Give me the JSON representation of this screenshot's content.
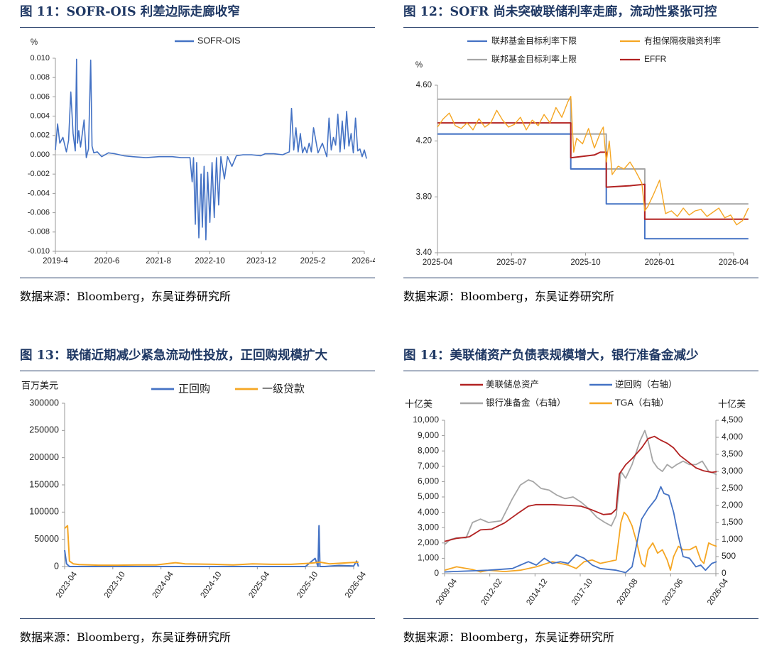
{
  "colors": {
    "title": "#1f3864",
    "blue": "#4472c4",
    "orange": "#f5a623",
    "red": "#b22222",
    "gray": "#a6a6a6"
  },
  "panels": [
    {
      "title": "图 11：SOFR-OIS 利差边际走廊收窄",
      "source": "数据来源：Bloomberg，东吴证券研究所"
    },
    {
      "title": "图 12：SOFR 尚未突破联储利率走廊，流动性紧张可控",
      "source": "数据来源：Bloomberg，东吴证券研究所"
    },
    {
      "title": "图 13：联储近期减少紧急流动性投放，正回购规模扩大",
      "source": "数据来源：Bloomberg，东吴证券研究所"
    },
    {
      "title": "图 14：美联储资产负债表规模增大，银行准备金减少",
      "source": "数据来源：Bloomberg，东吴证券研究所"
    }
  ],
  "chart_data": [
    {
      "type": "line",
      "unit": "%",
      "ylim": [
        -0.01,
        0.01
      ],
      "yticks": [
        "0.010",
        "0.008",
        "0.006",
        "0.004",
        "0.002",
        "0.000",
        "-0.002",
        "-0.004",
        "-0.006",
        "-0.008",
        "-0.010"
      ],
      "xticks": [
        "2019-4",
        "2020-6",
        "2021-8",
        "2022-10",
        "2023-12",
        "2025-2",
        "2026-4"
      ],
      "legend": [
        "SOFR-OIS"
      ],
      "series": [
        {
          "name": "SOFR-OIS",
          "color": "#4472c4",
          "x": [
            2019.25,
            2019.3,
            2019.35,
            2019.42,
            2019.5,
            2019.55,
            2019.6,
            2019.65,
            2019.7,
            2019.73,
            2019.75,
            2019.78,
            2019.82,
            2019.9,
            2019.95,
            2020.0,
            2020.05,
            2020.08,
            2020.12,
            2020.2,
            2020.3,
            2020.45,
            2020.6,
            2020.8,
            2021.0,
            2021.3,
            2021.6,
            2021.9,
            2022.1,
            2022.3,
            2022.35,
            2022.38,
            2022.42,
            2022.45,
            2022.5,
            2022.55,
            2022.58,
            2022.62,
            2022.66,
            2022.7,
            2022.75,
            2022.8,
            2022.85,
            2022.9,
            2022.95,
            2023.0,
            2023.08,
            2023.15,
            2023.25,
            2023.35,
            2023.5,
            2023.7,
            2023.9,
            2024.0,
            2024.2,
            2024.4,
            2024.55,
            2024.6,
            2024.65,
            2024.7,
            2024.75,
            2024.8,
            2024.85,
            2024.9,
            2024.95,
            2025.0,
            2025.05,
            2025.1,
            2025.2,
            2025.3,
            2025.4,
            2025.45,
            2025.5,
            2025.55,
            2025.6,
            2025.65,
            2025.7,
            2025.75,
            2025.8,
            2025.85,
            2025.9,
            2025.95,
            2026.0,
            2026.05,
            2026.1,
            2026.15,
            2026.2,
            2026.25,
            2026.3
          ],
          "y": [
            0.0005,
            0.0032,
            0.0012,
            0.0018,
            0.0003,
            0.0015,
            0.0065,
            0.0022,
            0.0004,
            0.0099,
            0.0012,
            0.0025,
            0.0008,
            0.0036,
            -0.0003,
            0.0006,
            0.0098,
            0.0009,
            0.0002,
            0.0003,
            -0.0002,
            0.0002,
            0.0001,
            -0.0001,
            -0.0002,
            -0.0003,
            -0.0002,
            -0.0002,
            -0.0003,
            -0.0003,
            -0.0028,
            -0.0003,
            -0.0072,
            -0.0008,
            -0.0086,
            -0.002,
            -0.0075,
            -0.0012,
            -0.0088,
            -0.0018,
            -0.007,
            -0.0008,
            -0.0065,
            -0.0003,
            -0.0052,
            -0.0002,
            -0.0025,
            -0.0002,
            -0.0012,
            -0.0001,
            0.0,
            0.0,
            -0.0001,
            0.0001,
            0.0001,
            0.0,
            0.0003,
            0.0048,
            0.0005,
            0.0028,
            0.0003,
            0.0022,
            0.0002,
            0.0008,
            0.0002,
            0.0012,
            0.0003,
            0.0028,
            0.0002,
            0.0012,
            -0.0002,
            0.0038,
            0.0005,
            0.0018,
            0.001,
            0.0042,
            0.0003,
            0.0035,
            0.0006,
            0.0045,
            0.0009,
            0.0022,
            0.0002,
            0.0038,
            0.0004,
            0.0006,
            -0.0002,
            0.0005,
            -0.0004
          ]
        }
      ]
    },
    {
      "type": "line",
      "unit": "%",
      "ylim": [
        3.4,
        4.6
      ],
      "yticks": [
        "4.60",
        "4.20",
        "3.80",
        "3.40"
      ],
      "xticks": [
        "2025-04",
        "2025-07",
        "2025-10",
        "2026-01",
        "2026-04"
      ],
      "legend": [
        "联邦基金目标利率下限",
        "有担保隔夜融资利率",
        "联邦基金目标利率上限",
        "EFFR"
      ],
      "series": [
        {
          "name": "联邦基金目标利率下限",
          "color": "#4472c4",
          "x": [
            2025.25,
            2025.7,
            2025.7,
            2025.82,
            2025.82,
            2025.95,
            2025.95,
            2026.3
          ],
          "y": [
            4.25,
            4.25,
            4.0,
            4.0,
            3.75,
            3.75,
            3.5,
            3.5
          ]
        },
        {
          "name": "联邦基金目标利率上限",
          "color": "#a6a6a6",
          "x": [
            2025.25,
            2025.7,
            2025.7,
            2025.82,
            2025.82,
            2025.95,
            2025.95,
            2026.3
          ],
          "y": [
            4.5,
            4.5,
            4.25,
            4.25,
            4.0,
            4.0,
            3.75,
            3.75
          ]
        },
        {
          "name": "EFFR",
          "color": "#b22222",
          "x": [
            2025.25,
            2025.7,
            2025.7,
            2025.78,
            2025.8,
            2025.82,
            2025.82,
            2025.9,
            2025.95,
            2025.95,
            2026.3
          ],
          "y": [
            4.33,
            4.33,
            4.08,
            4.1,
            4.12,
            4.12,
            3.87,
            3.88,
            3.89,
            3.64,
            3.64
          ]
        },
        {
          "name": "有担保隔夜融资利率",
          "color": "#f5a623",
          "x": [
            2025.25,
            2025.27,
            2025.29,
            2025.31,
            2025.33,
            2025.35,
            2025.37,
            2025.39,
            2025.41,
            2025.43,
            2025.45,
            2025.47,
            2025.49,
            2025.51,
            2025.53,
            2025.55,
            2025.57,
            2025.59,
            2025.61,
            2025.63,
            2025.65,
            2025.67,
            2025.69,
            2025.7,
            2025.71,
            2025.72,
            2025.74,
            2025.76,
            2025.78,
            2025.8,
            2025.81,
            2025.82,
            2025.83,
            2025.84,
            2025.86,
            2025.88,
            2025.9,
            2025.92,
            2025.94,
            2025.95,
            2025.96,
            2025.98,
            2026.0,
            2026.02,
            2026.04,
            2026.06,
            2026.08,
            2026.1,
            2026.12,
            2026.14,
            2026.16,
            2026.18,
            2026.2,
            2026.22,
            2026.24,
            2026.26,
            2026.28,
            2026.3
          ],
          "y": [
            4.3,
            4.36,
            4.4,
            4.31,
            4.29,
            4.33,
            4.28,
            4.36,
            4.3,
            4.33,
            4.42,
            4.35,
            4.3,
            4.32,
            4.37,
            4.28,
            4.35,
            4.31,
            4.39,
            4.33,
            4.44,
            4.37,
            4.48,
            4.52,
            4.12,
            4.22,
            4.18,
            4.29,
            4.15,
            4.26,
            4.3,
            4.05,
            4.2,
            3.96,
            4.02,
            4.0,
            4.05,
            3.98,
            3.9,
            3.7,
            3.73,
            3.82,
            3.92,
            3.68,
            3.7,
            3.66,
            3.72,
            3.67,
            3.7,
            3.71,
            3.66,
            3.69,
            3.72,
            3.65,
            3.67,
            3.6,
            3.63,
            3.72
          ]
        }
      ]
    },
    {
      "type": "line",
      "unit": "百万美元",
      "ylim": [
        0,
        300000
      ],
      "yticks": [
        "300000",
        "250000",
        "200000",
        "150000",
        "100000",
        "50000",
        "0"
      ],
      "xticks": [
        "2023-04",
        "2023-10",
        "2024-04",
        "2024-10",
        "2025-04",
        "2025-10",
        "2026-04"
      ],
      "legend": [
        "正回购",
        "一级贷款"
      ],
      "series": [
        {
          "name": "正回购",
          "color": "#4472c4",
          "x": [
            2023.25,
            2023.27,
            2023.3,
            2024.0,
            2025.0,
            2025.75,
            2025.85,
            2025.88,
            2025.89,
            2025.9,
            2025.95,
            2026.1,
            2026.25,
            2026.28,
            2026.3
          ],
          "y": [
            30000,
            5000,
            0,
            0,
            0,
            0,
            15000,
            0,
            75000,
            0,
            0,
            2000,
            1000,
            10000,
            0
          ]
        },
        {
          "name": "一级贷款",
          "color": "#f5a623",
          "x": [
            2023.25,
            2023.28,
            2023.3,
            2023.34,
            2023.4,
            2023.6,
            2023.8,
            2024.0,
            2024.2,
            2024.4,
            2024.5,
            2024.8,
            2025.0,
            2025.2,
            2025.4,
            2025.6,
            2025.8,
            2025.9,
            2026.0,
            2026.2,
            2026.3
          ],
          "y": [
            70000,
            75000,
            10000,
            5000,
            3500,
            2500,
            2500,
            3000,
            3000,
            7000,
            5000,
            4000,
            3000,
            5000,
            4000,
            4000,
            6000,
            8000,
            5000,
            7000,
            8000
          ]
        }
      ]
    },
    {
      "type": "line",
      "unit_left": "十亿美",
      "unit_right": "十亿美",
      "ylim": [
        0,
        10000
      ],
      "y2lim": [
        0,
        4500
      ],
      "yticks": [
        "10,000",
        "9,000",
        "8,000",
        "7,000",
        "6,000",
        "5,000",
        "4,000",
        "3,000",
        "2,000",
        "1,000",
        "0"
      ],
      "y2ticks": [
        "4,500",
        "4,000",
        "3,500",
        "3,000",
        "2,500",
        "2,000",
        "1,500",
        "1,000",
        "500",
        "0"
      ],
      "xticks": [
        "2009-04",
        "2012-02",
        "2014-12",
        "2017-10",
        "2020-08",
        "2023-06",
        "2026-04"
      ],
      "legend": [
        "美联储总资产",
        "逆回购（右轴）",
        "银行准备金（右轴）",
        "TGA（右轴）"
      ],
      "series": [
        {
          "name": "美联储总资产",
          "axis": "left",
          "color": "#b22222",
          "x": [
            2009.25,
            2010.0,
            2010.8,
            2011.5,
            2012.2,
            2013.0,
            2013.8,
            2014.5,
            2015.0,
            2016.0,
            2017.0,
            2017.8,
            2018.5,
            2019.2,
            2019.7,
            2020.0,
            2020.2,
            2020.6,
            2021.0,
            2021.6,
            2022.0,
            2022.4,
            2022.8,
            2023.2,
            2023.6,
            2024.0,
            2024.5,
            2025.0,
            2025.5,
            2026.0,
            2026.3
          ],
          "y": [
            2100,
            2300,
            2400,
            2850,
            2900,
            3300,
            3900,
            4400,
            4500,
            4500,
            4450,
            4400,
            4150,
            3850,
            3900,
            4200,
            6500,
            7100,
            7500,
            8200,
            8800,
            8950,
            8700,
            8500,
            8200,
            7700,
            7300,
            6900,
            6700,
            6600,
            6650
          ]
        },
        {
          "name": "逆回购（右轴）",
          "axis": "right",
          "color": "#4472c4",
          "x": [
            2009.25,
            2012.0,
            2013.5,
            2014.0,
            2014.5,
            2015.0,
            2015.5,
            2016.0,
            2016.5,
            2017.0,
            2017.5,
            2018.0,
            2018.5,
            2019.0,
            2020.0,
            2020.6,
            2021.0,
            2021.3,
            2021.6,
            2022.0,
            2022.5,
            2022.8,
            2023.0,
            2023.3,
            2023.6,
            2023.9,
            2024.2,
            2024.6,
            2025.0,
            2025.3,
            2025.6,
            2026.0,
            2026.3
          ],
          "y": [
            50,
            100,
            150,
            250,
            350,
            250,
            450,
            300,
            350,
            300,
            550,
            450,
            250,
            150,
            100,
            30,
            200,
            900,
            1600,
            1900,
            2200,
            2550,
            2350,
            2300,
            1800,
            1100,
            500,
            450,
            200,
            250,
            100,
            300,
            350
          ]
        },
        {
          "name": "银行准备金（右轴）",
          "axis": "right",
          "color": "#a6a6a6",
          "x": [
            2009.25,
            2009.6,
            2010.0,
            2010.6,
            2011.0,
            2011.5,
            2012.0,
            2012.8,
            2013.5,
            2014.0,
            2014.5,
            2014.8,
            2015.3,
            2015.8,
            2016.3,
            2016.8,
            2017.3,
            2017.8,
            2018.3,
            2018.8,
            2019.3,
            2019.7,
            2020.0,
            2020.3,
            2020.6,
            2021.0,
            2021.5,
            2021.8,
            2022.0,
            2022.3,
            2022.6,
            2022.9,
            2023.2,
            2023.5,
            2023.8,
            2024.2,
            2024.6,
            2025.0,
            2025.4,
            2025.8,
            2026.1,
            2026.3
          ],
          "y": [
            850,
            1000,
            1050,
            1050,
            1500,
            1600,
            1500,
            1550,
            2200,
            2600,
            2750,
            2700,
            2500,
            2450,
            2300,
            2200,
            2250,
            2100,
            1900,
            1650,
            1500,
            1400,
            1700,
            3000,
            2800,
            3200,
            3900,
            4200,
            3900,
            3300,
            3100,
            3000,
            3200,
            3100,
            3200,
            3300,
            3200,
            3200,
            3300,
            3000,
            2950,
            2900
          ]
        },
        {
          "name": "TGA（右轴）",
          "axis": "right",
          "color": "#f5a623",
          "x": [
            2009.25,
            2010.0,
            2011.0,
            2011.5,
            2012.0,
            2013.0,
            2014.0,
            2015.0,
            2016.0,
            2016.5,
            2017.0,
            2017.5,
            2018.0,
            2018.5,
            2019.0,
            2019.5,
            2020.0,
            2020.3,
            2020.5,
            2020.7,
            2021.0,
            2021.3,
            2021.6,
            2021.8,
            2022.0,
            2022.3,
            2022.6,
            2022.9,
            2023.2,
            2023.4,
            2023.6,
            2023.9,
            2024.2,
            2024.6,
            2025.0,
            2025.3,
            2025.5,
            2025.8,
            2026.0,
            2026.3
          ],
          "y": [
            100,
            200,
            120,
            50,
            100,
            60,
            100,
            200,
            350,
            300,
            250,
            150,
            350,
            400,
            300,
            350,
            400,
            1500,
            1800,
            1700,
            1400,
            900,
            300,
            200,
            700,
            900,
            600,
            700,
            400,
            100,
            500,
            800,
            700,
            700,
            800,
            400,
            300,
            900,
            850,
            800
          ]
        }
      ]
    }
  ]
}
